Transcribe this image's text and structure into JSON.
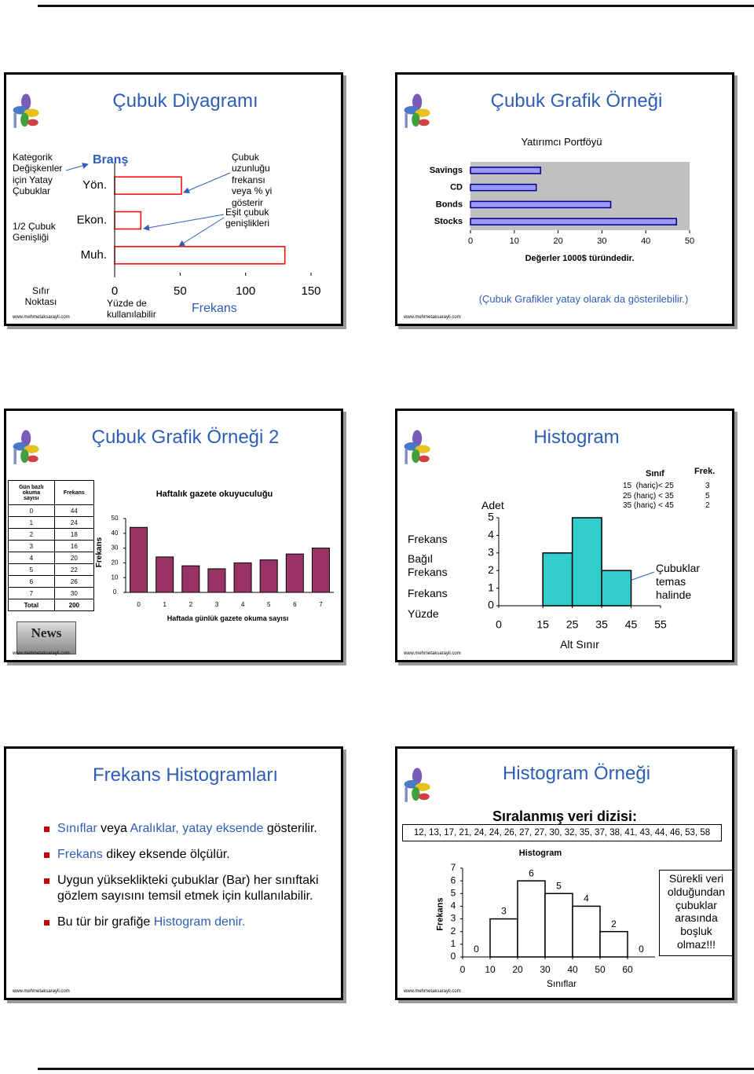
{
  "slides": [
    {
      "title": "Çubuk Diyagramı",
      "notes": [
        "Kategorik\nDeğişkenler\niçin Yatay\nÇubuklar",
        "1/2 Çubuk\nGenişliği",
        "Sıfır\nNoktası",
        "Yüzde de\nkullanılabilir",
        "Çubuk\nuzunluğu\nfrekansı\nveya % yi\ngösterir",
        "Eşit çubuk\ngenişlikleri"
      ],
      "chart": {
        "type": "hbar",
        "y_label": "Branş",
        "x_label": "Frekans",
        "categories": [
          "Yön.",
          "Ekon.",
          "Muh."
        ],
        "values": [
          51,
          20,
          130
        ],
        "xlim": [
          0,
          150
        ],
        "xticks": [
          0,
          50,
          100,
          150
        ],
        "color": "#ffffff",
        "edge_color": "#ff0000"
      },
      "url": "www.mehmetaksarayli.com"
    },
    {
      "title": "Çubuk Grafik Örneği",
      "chart": {
        "type": "hbar",
        "title": "Yatırımcı Portföyü",
        "x_label": "Değerler 1000$ türündedir.",
        "categories": [
          "Savings",
          "CD",
          "Bonds",
          "Stocks"
        ],
        "values": [
          16,
          15,
          32,
          47
        ],
        "xlim": [
          0,
          50
        ],
        "xticks": [
          0,
          10,
          20,
          30,
          40,
          50
        ],
        "color": "#9999ff",
        "edge_color": "#000080",
        "plot_background": "#c0c0c0"
      },
      "note": "(Çubuk Grafikler yatay olarak da gösterilebilir.)",
      "url": "www.mehmetaksarayli.com"
    },
    {
      "title": "Çubuk Grafik Örneği 2",
      "table": {
        "headers": [
          "Gün bazlı\nokuma\nsayısı",
          "Frekans"
        ],
        "total_label": "Total",
        "total": 200
      },
      "image_text": "News",
      "chart": {
        "type": "bar",
        "title": "Haftalık gazete okuyuculuğu",
        "x_label": "Haftada günlük gazete okuma sayısı",
        "y_label": "Frekans",
        "categories": [
          "0",
          "1",
          "2",
          "3",
          "4",
          "5",
          "6",
          "7"
        ],
        "values": [
          44,
          24,
          18,
          16,
          20,
          22,
          26,
          30
        ],
        "ylim": [
          0,
          50
        ],
        "yticks": [
          0,
          10,
          20,
          30,
          40,
          50
        ],
        "color": "#993366",
        "edge_color": "#000000"
      },
      "url": "www.mehmetaksarayli.com"
    },
    {
      "title": "Histogram",
      "side_labels": [
        "Frekans",
        "Bağıl\nFrekans",
        "Frekans",
        "Yüzde"
      ],
      "class_table": {
        "headers": [
          "Sınıf",
          "Frek."
        ],
        "classes": [
          "15  (hariç)< 25",
          "25 (hariç) < 35",
          "35 (hariç) < 45"
        ]
      },
      "note": "Çubuklar\ntemas\nhalinde",
      "chart": {
        "type": "histogram",
        "y_label": "Adet",
        "x_label": "Alt Sınır",
        "bins": [
          15,
          25,
          35,
          45
        ],
        "values": [
          3,
          5,
          2
        ],
        "xlim": [
          0,
          55
        ],
        "xticks": [
          0,
          15,
          25,
          35,
          45,
          55
        ],
        "ylim": [
          0,
          5
        ],
        "yticks": [
          0,
          1,
          2,
          3,
          4,
          5
        ],
        "color": "#33cccc",
        "edge_color": "#000000"
      },
      "url": "www.mehmetaksarayli.com"
    },
    {
      "title": "Frekans Histogramları",
      "bullets": [
        [
          {
            "text": "Sınıflar",
            "highlight": true
          },
          {
            "text": " veya ",
            "highlight": false
          },
          {
            "text": "Aralıklar, yatay eksende",
            "highlight": true
          },
          {
            "text": " gösterilir.",
            "highlight": false
          }
        ],
        [
          {
            "text": "Frekans",
            "highlight": true
          },
          {
            "text": " dikey eksende ölçülür.",
            "highlight": false
          }
        ],
        [
          {
            "text": "Uygun yükseklikteki çubuklar (Bar) her sınıftaki gözlem sayısını temsil etmek için kullanılabilir.",
            "highlight": false
          }
        ],
        [
          {
            "text": "Bu tür bir grafiğe ",
            "highlight": false
          },
          {
            "text": "Histogram denir.",
            "highlight": true
          }
        ]
      ],
      "url": "www.mehmetaksarayli.com"
    },
    {
      "title": "Histogram Örneği",
      "subtitle": "Sıralanmış veri dizisi:",
      "data_series": "12, 13, 17, 21, 24, 24, 26, 27, 27, 30, 32, 35, 37, 38, 41, 43, 44, 46, 53, 58",
      "chart": {
        "type": "histogram",
        "title": "Histogram",
        "y_label": "Frekans",
        "x_label": "Sınıflar",
        "bins": [
          0,
          10,
          20,
          30,
          40,
          50,
          60,
          70
        ],
        "values": [
          0,
          3,
          6,
          5,
          4,
          2,
          0
        ],
        "xlim": [
          0,
          70
        ],
        "xticks": [
          0,
          10,
          20,
          30,
          40,
          50,
          60
        ],
        "ylim": [
          0,
          7
        ],
        "yticks": [
          0,
          1,
          2,
          3,
          4,
          5,
          6,
          7
        ],
        "color": "#ffffff",
        "edge_color": "#000000",
        "data_labels": true
      },
      "note": "Sürekli veri\nolduğundan\nçubuklar\narasında\nboşluk\nolmaz!!!",
      "url": "www.mehmetaksarayli.com"
    }
  ]
}
